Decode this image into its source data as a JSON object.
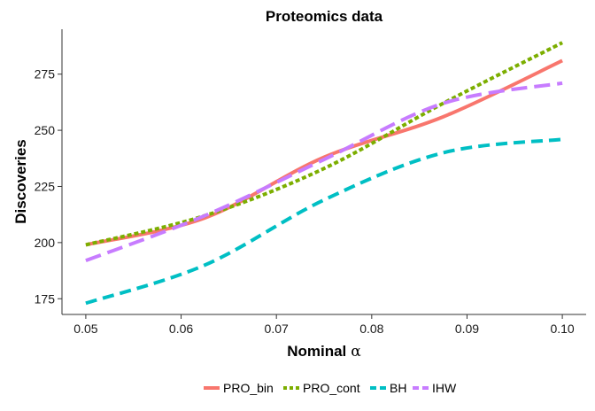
{
  "chart_data": {
    "type": "line",
    "title": "Proteomics data",
    "xlabel": "Nominal",
    "xlabel_symbol": "α",
    "ylabel": "Discoveries",
    "x": [
      0.05,
      0.0625,
      0.075,
      0.0875,
      0.1
    ],
    "xticks": [
      0.05,
      0.06,
      0.07,
      0.08,
      0.09,
      0.1
    ],
    "xtick_labels": [
      "0.05",
      "0.06",
      "0.07",
      "0.08",
      "0.09",
      "0.10"
    ],
    "yticks": [
      175,
      200,
      225,
      250,
      275
    ],
    "yticks_labels": [
      "175",
      "200",
      "225",
      "250",
      "275"
    ],
    "xlim": [
      0.0475,
      0.1025
    ],
    "ylim": [
      168,
      295
    ],
    "grid": false,
    "legend_position": "bottom",
    "series": [
      {
        "name": "PRO_bin",
        "color": "#f8766d",
        "dash": "solid",
        "values": [
          199,
          211,
          238,
          256,
          281
        ]
      },
      {
        "name": "PRO_cont",
        "color": "#7cae00",
        "dash": "dotted",
        "values": [
          199,
          212,
          233,
          262,
          289
        ]
      },
      {
        "name": "BH",
        "color": "#00bfc4",
        "dash": "dashed",
        "values": [
          173,
          190,
          219,
          240,
          246
        ]
      },
      {
        "name": "IHW",
        "color": "#c77cff",
        "dash": "longdash",
        "values": [
          192,
          212,
          237,
          262,
          271
        ]
      }
    ]
  }
}
